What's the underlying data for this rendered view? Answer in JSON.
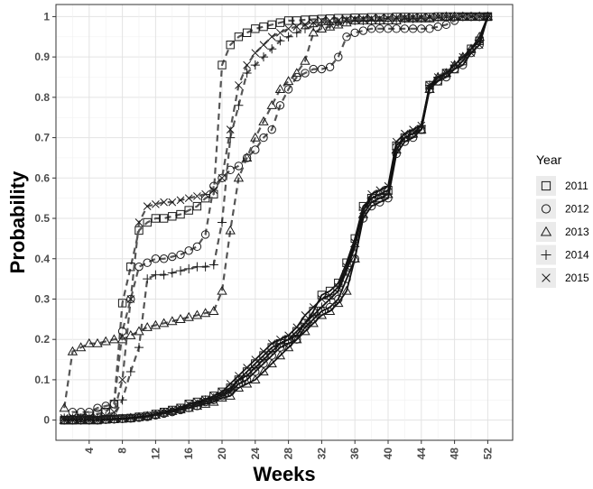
{
  "chart_data": {
    "type": "line",
    "xlabel": "Weeks",
    "ylabel": "Probability",
    "xlim": [
      0,
      55
    ],
    "ylim": [
      -0.05,
      1.03
    ],
    "x_ticks": [
      4,
      8,
      12,
      16,
      20,
      24,
      28,
      32,
      36,
      40,
      44,
      48,
      52
    ],
    "x_tick_labels": [
      "4",
      "8",
      "12",
      "16",
      "20",
      "24",
      "28",
      "32",
      "36",
      "40",
      "44",
      "48",
      "52"
    ],
    "y_ticks": [
      0,
      0.1,
      0.2,
      0.3,
      0.4,
      0.5,
      0.6,
      0.7,
      0.8,
      0.9,
      1
    ],
    "y_tick_labels": [
      "0",
      "0.1",
      "0.2",
      "0.3",
      "0.4",
      "0.5",
      "0.6",
      "0.7",
      "0.8",
      "0.9",
      "1"
    ],
    "grid": true,
    "legend": {
      "title": "Year",
      "placement": "right",
      "entries": [
        {
          "label": "2011",
          "shape": "square"
        },
        {
          "label": "2012",
          "shape": "circle"
        },
        {
          "label": "2013",
          "shape": "triangle"
        },
        {
          "label": "2014",
          "shape": "plus"
        },
        {
          "label": "2015",
          "shape": "cross"
        }
      ]
    },
    "x": [
      1,
      2,
      3,
      4,
      5,
      6,
      7,
      8,
      9,
      10,
      11,
      12,
      13,
      14,
      15,
      16,
      17,
      18,
      19,
      20,
      21,
      22,
      23,
      24,
      25,
      26,
      27,
      28,
      29,
      30,
      31,
      32,
      33,
      34,
      35,
      36,
      37,
      38,
      39,
      40,
      41,
      42,
      43,
      44,
      45,
      46,
      47,
      48,
      49,
      50,
      51,
      52
    ],
    "dashed_series": [
      {
        "shape": "square",
        "values": [
          0.0,
          0.0,
          0.005,
          0.01,
          0.015,
          0.02,
          0.04,
          0.29,
          0.38,
          0.47,
          0.49,
          0.5,
          0.5,
          0.505,
          0.51,
          0.52,
          0.53,
          0.55,
          0.56,
          0.88,
          0.93,
          0.95,
          0.96,
          0.97,
          0.975,
          0.98,
          0.985,
          0.99,
          0.99,
          0.992,
          0.993,
          0.994,
          0.995,
          0.996,
          0.996,
          0.997,
          0.997,
          0.998,
          0.998,
          0.998,
          0.999,
          0.999,
          0.999,
          0.999,
          0.999,
          1.0,
          1.0,
          1.0,
          1.0,
          1.0,
          1.0,
          1.0
        ]
      },
      {
        "shape": "circle",
        "values": [
          0.0,
          0.02,
          0.02,
          0.02,
          0.03,
          0.035,
          0.04,
          0.22,
          0.3,
          0.38,
          0.39,
          0.4,
          0.4,
          0.405,
          0.41,
          0.42,
          0.43,
          0.46,
          0.58,
          0.6,
          0.62,
          0.63,
          0.65,
          0.67,
          0.7,
          0.72,
          0.78,
          0.82,
          0.85,
          0.86,
          0.87,
          0.87,
          0.875,
          0.9,
          0.95,
          0.96,
          0.965,
          0.97,
          0.97,
          0.97,
          0.97,
          0.97,
          0.97,
          0.97,
          0.97,
          0.975,
          0.98,
          0.99,
          1.0,
          1.0,
          1.0,
          1.0
        ]
      },
      {
        "shape": "triangle",
        "values": [
          0.03,
          0.17,
          0.18,
          0.19,
          0.19,
          0.195,
          0.2,
          0.2,
          0.21,
          0.22,
          0.23,
          0.235,
          0.24,
          0.245,
          0.25,
          0.255,
          0.26,
          0.265,
          0.27,
          0.32,
          0.47,
          0.6,
          0.65,
          0.7,
          0.74,
          0.78,
          0.82,
          0.84,
          0.86,
          0.89,
          0.96,
          0.97,
          0.975,
          0.98,
          0.985,
          0.99,
          0.99,
          0.99,
          0.99,
          0.99,
          0.99,
          0.995,
          0.995,
          0.995,
          0.995,
          0.998,
          1.0,
          1.0,
          1.0,
          1.0,
          1.0,
          1.0
        ]
      },
      {
        "shape": "plus",
        "values": [
          0.005,
          0.005,
          0.005,
          0.005,
          0.005,
          0.01,
          0.01,
          0.05,
          0.12,
          0.18,
          0.35,
          0.36,
          0.36,
          0.365,
          0.37,
          0.375,
          0.38,
          0.38,
          0.385,
          0.49,
          0.7,
          0.78,
          0.86,
          0.88,
          0.9,
          0.92,
          0.94,
          0.95,
          0.96,
          0.97,
          0.975,
          0.98,
          0.98,
          0.985,
          0.99,
          0.99,
          0.99,
          0.99,
          0.99,
          0.995,
          0.995,
          0.995,
          0.995,
          0.996,
          0.997,
          0.998,
          0.999,
          1.0,
          1.0,
          1.0,
          1.0,
          1.0
        ]
      },
      {
        "shape": "cross",
        "values": [
          0.005,
          0.005,
          0.005,
          0.005,
          0.005,
          0.01,
          0.02,
          0.1,
          0.3,
          0.49,
          0.53,
          0.535,
          0.54,
          0.54,
          0.545,
          0.55,
          0.555,
          0.56,
          0.57,
          0.6,
          0.72,
          0.83,
          0.88,
          0.91,
          0.93,
          0.95,
          0.96,
          0.97,
          0.975,
          0.98,
          0.985,
          0.99,
          0.99,
          0.99,
          0.992,
          0.993,
          0.994,
          0.995,
          0.996,
          0.996,
          0.997,
          0.997,
          0.998,
          0.998,
          0.999,
          0.999,
          1.0,
          1.0,
          1.0,
          1.0,
          1.0,
          1.0
        ]
      }
    ],
    "solid_series": [
      {
        "shape": "square",
        "values": [
          0.0,
          0.0,
          0.0,
          0.0,
          0.0,
          0.002,
          0.003,
          0.004,
          0.005,
          0.008,
          0.01,
          0.015,
          0.02,
          0.025,
          0.03,
          0.04,
          0.045,
          0.05,
          0.06,
          0.07,
          0.08,
          0.1,
          0.12,
          0.14,
          0.16,
          0.18,
          0.19,
          0.2,
          0.22,
          0.24,
          0.27,
          0.31,
          0.32,
          0.34,
          0.39,
          0.45,
          0.53,
          0.55,
          0.56,
          0.57,
          0.68,
          0.7,
          0.71,
          0.72,
          0.83,
          0.84,
          0.86,
          0.87,
          0.89,
          0.92,
          0.94,
          1.0
        ]
      },
      {
        "shape": "circle",
        "values": [
          0.0,
          0.0,
          0.0,
          0.0,
          0.0,
          0.001,
          0.002,
          0.003,
          0.004,
          0.006,
          0.008,
          0.012,
          0.016,
          0.02,
          0.025,
          0.03,
          0.035,
          0.045,
          0.05,
          0.06,
          0.07,
          0.09,
          0.1,
          0.12,
          0.14,
          0.16,
          0.18,
          0.19,
          0.2,
          0.23,
          0.25,
          0.27,
          0.28,
          0.3,
          0.35,
          0.4,
          0.5,
          0.53,
          0.54,
          0.55,
          0.66,
          0.69,
          0.7,
          0.72,
          0.82,
          0.84,
          0.85,
          0.87,
          0.88,
          0.91,
          0.93,
          1.0
        ]
      },
      {
        "shape": "triangle",
        "values": [
          0.0,
          0.0,
          0.0,
          0.0,
          0.0,
          0.001,
          0.002,
          0.003,
          0.005,
          0.007,
          0.01,
          0.013,
          0.018,
          0.022,
          0.026,
          0.03,
          0.035,
          0.04,
          0.045,
          0.055,
          0.06,
          0.08,
          0.09,
          0.1,
          0.12,
          0.14,
          0.16,
          0.18,
          0.2,
          0.22,
          0.24,
          0.26,
          0.27,
          0.29,
          0.32,
          0.4,
          0.51,
          0.54,
          0.55,
          0.56,
          0.67,
          0.7,
          0.71,
          0.72,
          0.82,
          0.85,
          0.86,
          0.88,
          0.9,
          0.92,
          0.95,
          1.0
        ]
      },
      {
        "shape": "plus",
        "values": [
          0.0,
          0.0,
          0.0,
          0.0,
          0.0,
          0.002,
          0.003,
          0.004,
          0.006,
          0.008,
          0.01,
          0.014,
          0.018,
          0.022,
          0.028,
          0.035,
          0.04,
          0.05,
          0.055,
          0.065,
          0.075,
          0.1,
          0.11,
          0.13,
          0.15,
          0.17,
          0.19,
          0.2,
          0.21,
          0.24,
          0.26,
          0.28,
          0.3,
          0.32,
          0.37,
          0.43,
          0.52,
          0.55,
          0.56,
          0.56,
          0.67,
          0.7,
          0.71,
          0.73,
          0.83,
          0.85,
          0.86,
          0.88,
          0.9,
          0.92,
          0.94,
          1.0
        ]
      },
      {
        "shape": "cross",
        "values": [
          0.0,
          0.0,
          0.0,
          0.0,
          0.0,
          0.002,
          0.003,
          0.004,
          0.006,
          0.008,
          0.01,
          0.015,
          0.02,
          0.025,
          0.03,
          0.04,
          0.045,
          0.05,
          0.06,
          0.07,
          0.09,
          0.11,
          0.13,
          0.15,
          0.17,
          0.19,
          0.2,
          0.21,
          0.23,
          0.26,
          0.28,
          0.3,
          0.31,
          0.33,
          0.38,
          0.44,
          0.52,
          0.56,
          0.57,
          0.58,
          0.69,
          0.71,
          0.72,
          0.73,
          0.83,
          0.85,
          0.86,
          0.88,
          0.9,
          0.91,
          0.93,
          1.0
        ]
      }
    ]
  }
}
